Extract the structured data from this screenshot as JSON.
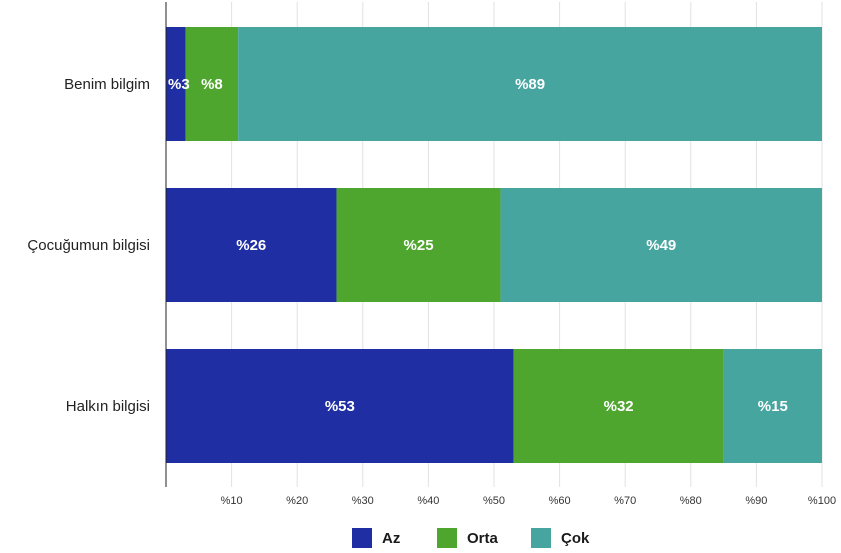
{
  "chart_data": {
    "type": "bar",
    "orientation": "horizontal",
    "stacked": true,
    "categories": [
      "Benim bilgim",
      "Çocuğumun bilgisi",
      "Halkın bilgisi"
    ],
    "series": [
      {
        "name": "Az",
        "color": "#1f2fa3",
        "values": [
          3,
          26,
          53
        ],
        "labels": [
          "%3",
          "%26",
          "%53"
        ]
      },
      {
        "name": "Orta",
        "color": "#4ea62e",
        "values": [
          8,
          25,
          32
        ],
        "labels": [
          "%8",
          "%25",
          "%32"
        ]
      },
      {
        "name": "Çok",
        "color": "#47a5a0",
        "values": [
          89,
          49,
          15
        ],
        "labels": [
          "%89",
          "%49",
          "%15"
        ]
      }
    ],
    "x_ticks": [
      "%10",
      "%20",
      "%30",
      "%40",
      "%50",
      "%60",
      "%70",
      "%80",
      "%90",
      "%100"
    ],
    "xlim": [
      0,
      100
    ],
    "title": "",
    "xlabel": "",
    "ylabel": "",
    "grid": true,
    "legend_position": "bottom"
  }
}
